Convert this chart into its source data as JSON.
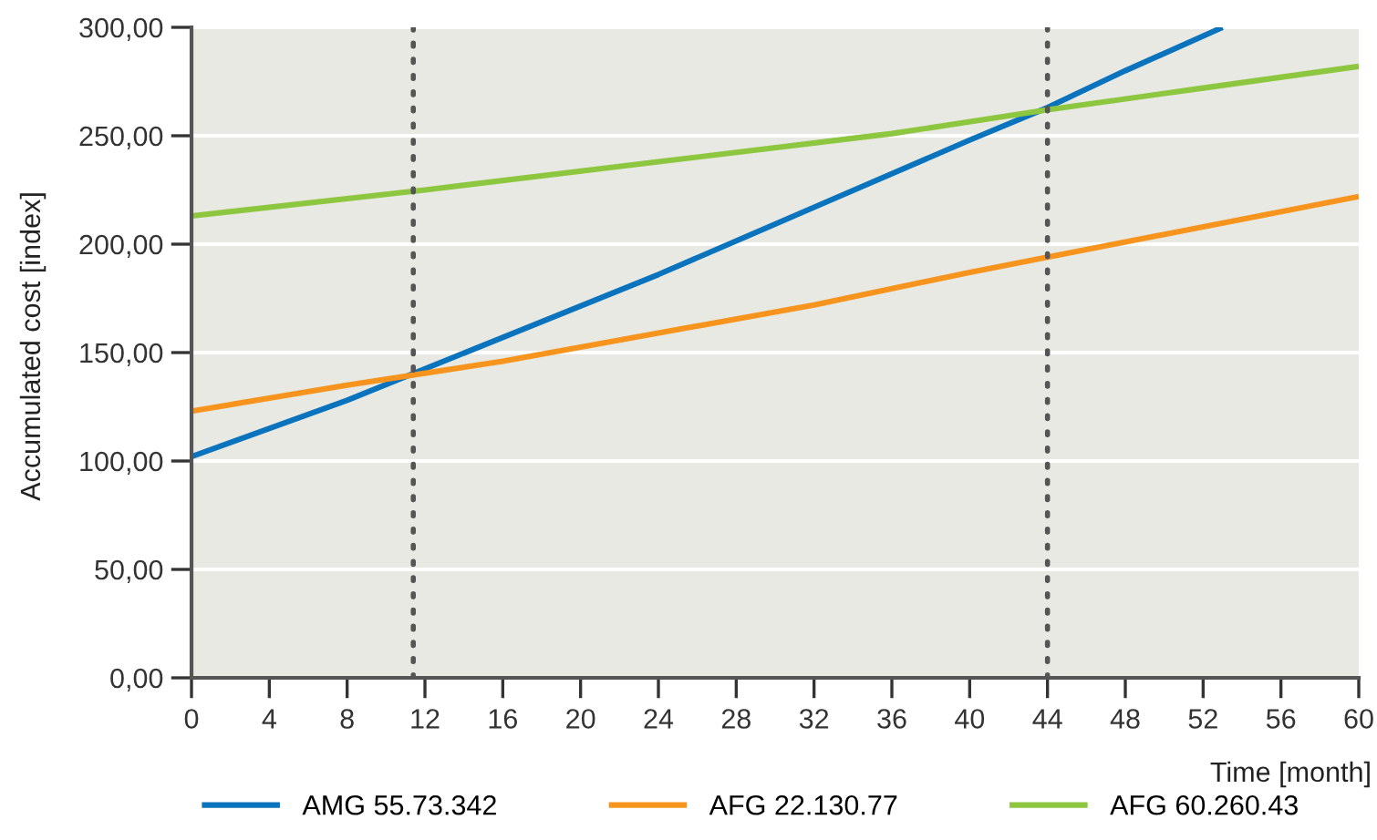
{
  "chart_data": {
    "type": "line",
    "xlabel": "Time [month]",
    "ylabel": "Accumulated cost [index]",
    "xlim": [
      0,
      60
    ],
    "xticks": [
      0,
      4,
      8,
      12,
      16,
      20,
      24,
      28,
      32,
      36,
      40,
      44,
      48,
      52,
      56,
      60
    ],
    "ylim": [
      0,
      300
    ],
    "yticks": [
      {
        "value": 0,
        "label": "0,00"
      },
      {
        "value": 50,
        "label": "50,00"
      },
      {
        "value": 100,
        "label": "100,00"
      },
      {
        "value": 150,
        "label": "150,00"
      },
      {
        "value": 200,
        "label": "200,00"
      },
      {
        "value": 250,
        "label": "250,00"
      },
      {
        "value": 300,
        "label": "300,00"
      }
    ],
    "grid": "y",
    "legend": "bottom",
    "marker": "none",
    "line_style": "solid",
    "series": [
      {
        "name": "AMG 55.73.342",
        "color": "#0a73be",
        "x": [
          0,
          8,
          16,
          24,
          32,
          40,
          44,
          48,
          53
        ],
        "values": [
          102,
          128,
          157,
          186,
          217,
          248,
          263,
          280,
          300
        ]
      },
      {
        "name": "AFG 22.130.77",
        "color": "#f7941d",
        "x": [
          0,
          8,
          16,
          24,
          32,
          40,
          44,
          52,
          60
        ],
        "values": [
          123,
          135,
          146,
          159,
          172,
          187,
          194,
          208,
          222
        ]
      },
      {
        "name": "AFG 60.260.43",
        "color": "#8dc63f",
        "x": [
          0,
          12,
          24,
          36,
          44,
          52,
          60
        ],
        "values": [
          213,
          225,
          238,
          251,
          262,
          272,
          282
        ]
      }
    ],
    "ref_lines": [
      {
        "axis": "x",
        "value": 11.4,
        "color": "#555555",
        "line_style": "dotted"
      },
      {
        "axis": "x",
        "value": 44,
        "color": "#555555",
        "line_style": "dotted"
      }
    ]
  }
}
